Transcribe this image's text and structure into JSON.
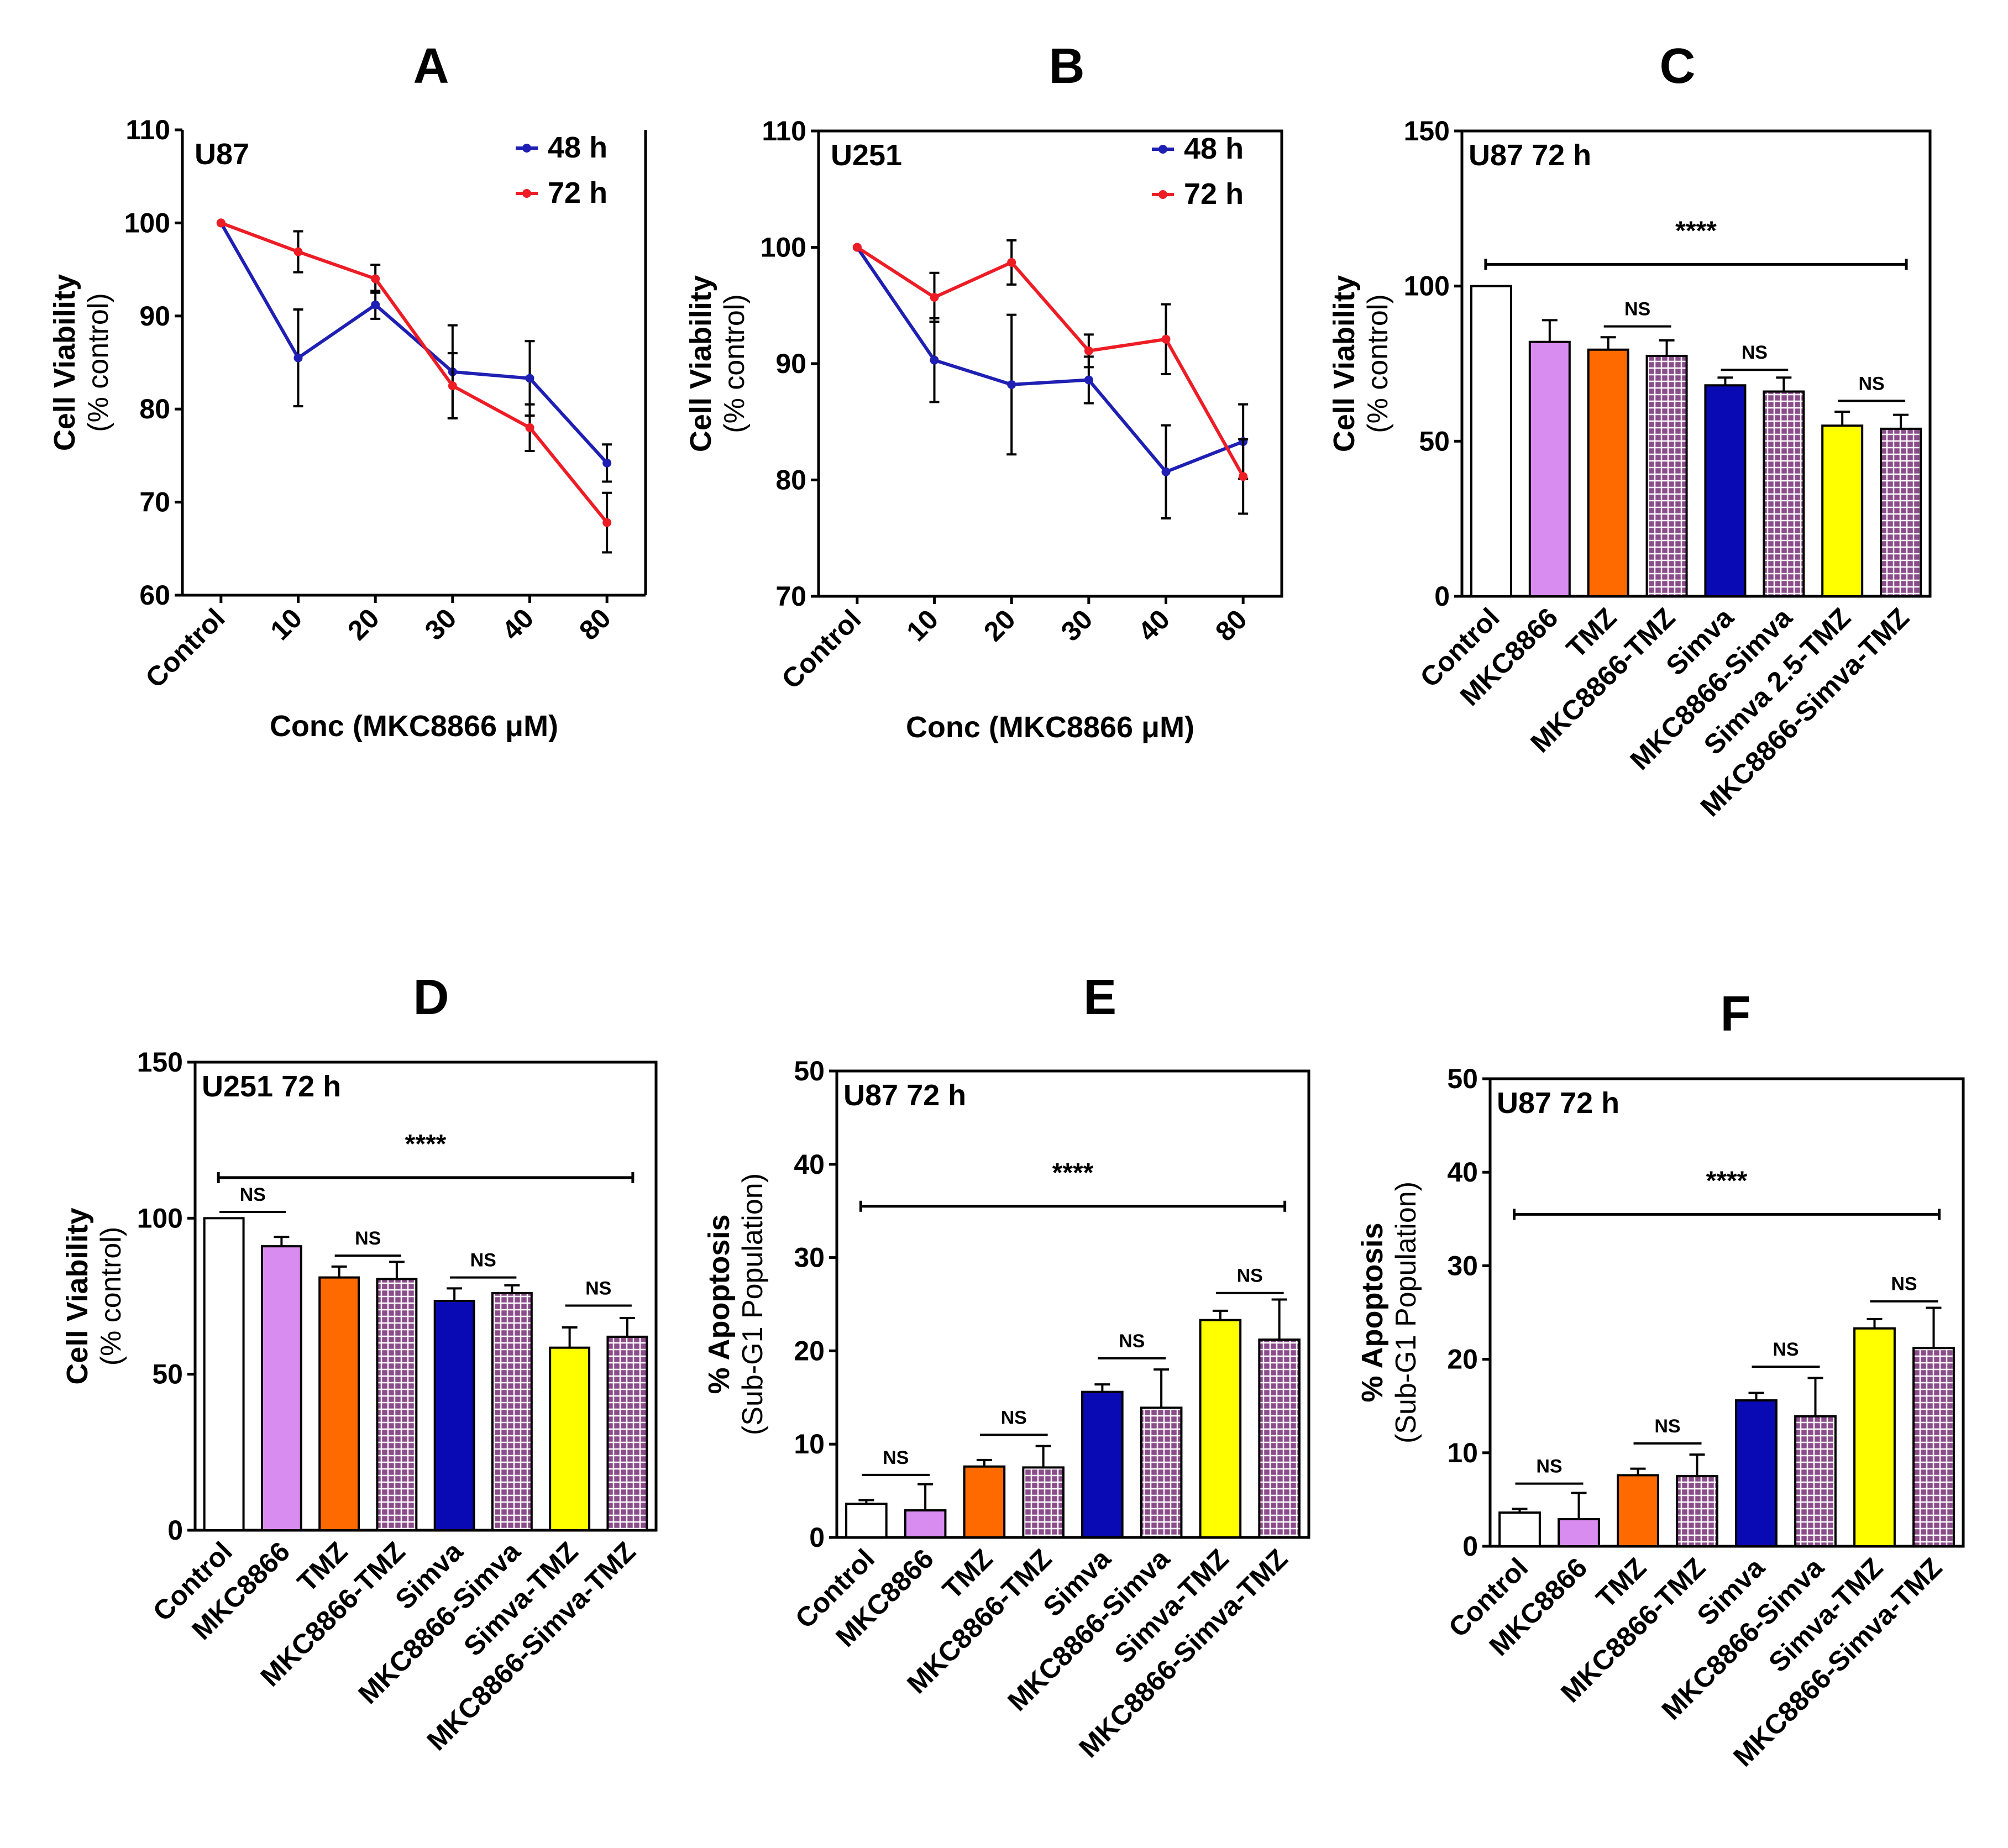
{
  "chart_data": [
    {
      "panel": "A",
      "type": "line",
      "cell_line": "U87",
      "categories": [
        "Control",
        "10",
        "20",
        "30",
        "40",
        "80"
      ],
      "xlabel": "Conc (MKC8866 μM)",
      "ylabel": "Cell Viability",
      "ylabel_sub": "(% control)",
      "ylim": [
        60,
        110
      ],
      "yticks": [
        60,
        70,
        80,
        90,
        100,
        110
      ],
      "series": [
        {
          "name": "48 h",
          "color": "#1f1fb4",
          "values": [
            100,
            85.5,
            91.2,
            84,
            83.3,
            74.2
          ],
          "errors": [
            0,
            5.2,
            1.5,
            5,
            4,
            2
          ]
        },
        {
          "name": "72 h",
          "color": "#ee1c25",
          "values": [
            100,
            96.9,
            94,
            82.5,
            78,
            67.8
          ],
          "errors": [
            0,
            2.2,
            1.5,
            3.5,
            2.5,
            3.2
          ]
        }
      ]
    },
    {
      "panel": "B",
      "type": "line",
      "cell_line": "U251",
      "categories": [
        "Control",
        "10",
        "20",
        "30",
        "40",
        "80"
      ],
      "xlabel": "Conc (MKC8866 μM)",
      "ylabel": "Cell Viability",
      "ylabel_sub": "(% control)",
      "ylim": [
        70,
        110
      ],
      "yticks": [
        70,
        80,
        90,
        100,
        110
      ],
      "series": [
        {
          "name": "48 h",
          "color": "#1f1fb4",
          "values": [
            100,
            90.3,
            88.2,
            88.6,
            80.7,
            83.3
          ],
          "errors": [
            0,
            3.6,
            6,
            2,
            4,
            3.2
          ]
        },
        {
          "name": "72 h",
          "color": "#ee1c25",
          "values": [
            100,
            95.7,
            98.7,
            91.1,
            92.1,
            80.3
          ],
          "errors": [
            0,
            2.1,
            1.9,
            1.4,
            3,
            3.2
          ]
        }
      ]
    },
    {
      "panel": "C",
      "type": "bar",
      "cell_line": "U87 72 h",
      "categories": [
        "Control",
        "MKC8866",
        "TMZ",
        "MKC8866-TMZ",
        "Simva",
        "MKC8866-Simva",
        "Simva 2.5-TMZ",
        "MKC8866-Simva-TMZ"
      ],
      "values": [
        100,
        82,
        79.5,
        77.5,
        68,
        66,
        55,
        54
      ],
      "errors": [
        0,
        7,
        4,
        5,
        2.5,
        4.5,
        4.5,
        4.5
      ],
      "ylabel": "Cell Viability",
      "ylabel_sub": "(% control)",
      "ylim": [
        0,
        150
      ],
      "yticks": [
        0,
        50,
        100,
        150
      ],
      "significance": {
        "label": "****",
        "from": 0,
        "to": 7,
        "y": 107
      },
      "ns_brackets": [
        {
          "label": "NS",
          "from": 2,
          "to": 3,
          "y": 87
        },
        {
          "label": "NS",
          "from": 4,
          "to": 5,
          "y": 73
        },
        {
          "label": "NS",
          "from": 6,
          "to": 7,
          "y": 63
        }
      ]
    },
    {
      "panel": "D",
      "type": "bar",
      "cell_line": "U251 72 h",
      "categories": [
        "Control",
        "MKC8866",
        "TMZ",
        "MKC8866-TMZ",
        "Simva",
        "MKC8866-Simva",
        "Simva-TMZ",
        "MKC8866-Simva-TMZ"
      ],
      "values": [
        100,
        91,
        81,
        80.5,
        73.5,
        76,
        58.5,
        62
      ],
      "errors": [
        0,
        3,
        3.5,
        5.5,
        4,
        2.5,
        6.5,
        6
      ],
      "ylabel": "Cell Viability",
      "ylabel_sub": "(% control)",
      "ylim": [
        0,
        150
      ],
      "yticks": [
        0,
        50,
        100,
        150
      ],
      "significance": {
        "label": "****",
        "from": 0,
        "to": 7,
        "y": 113
      },
      "ns_brackets": [
        {
          "label": "NS",
          "from": 0,
          "to": 1,
          "y": 102
        },
        {
          "label": "NS",
          "from": 2,
          "to": 3,
          "y": 88
        },
        {
          "label": "NS",
          "from": 4,
          "to": 5,
          "y": 81
        },
        {
          "label": "NS",
          "from": 6,
          "to": 7,
          "y": 72
        }
      ]
    },
    {
      "panel": "E",
      "type": "bar",
      "cell_line": "U87 72 h",
      "categories": [
        "Control",
        "MKC8866",
        "TMZ",
        "MKC8866-TMZ",
        "Simva",
        "MKC8866-Simva",
        "Simva-TMZ",
        "MKC8866-Simva-TMZ"
      ],
      "values": [
        3.6,
        2.9,
        7.6,
        7.5,
        15.6,
        13.9,
        23.3,
        21.2
      ],
      "errors": [
        0.4,
        2.8,
        0.7,
        2.3,
        0.8,
        4.1,
        1,
        4.3
      ],
      "ylabel": "% Apoptosis",
      "ylabel_sub": "(Sub-G1 Population)",
      "ylim": [
        0,
        50
      ],
      "yticks": [
        0,
        10,
        20,
        30,
        40,
        50
      ],
      "significance": {
        "label": "****",
        "from": 0,
        "to": 7,
        "y": 35.5
      },
      "ns_brackets": [
        {
          "label": "NS",
          "from": 0,
          "to": 1,
          "y": 6.7
        },
        {
          "label": "NS",
          "from": 2,
          "to": 3,
          "y": 11
        },
        {
          "label": "NS",
          "from": 4,
          "to": 5,
          "y": 19.2
        },
        {
          "label": "NS",
          "from": 6,
          "to": 7,
          "y": 26.2
        }
      ]
    },
    {
      "panel": "F",
      "type": "bar",
      "cell_line": "U87 72 h",
      "categories": [
        "Control",
        "MKC8866",
        "TMZ",
        "MKC8866-TMZ",
        "Simva",
        "MKC8866-Simva",
        "Simva-TMZ",
        "MKC8866-Simva-TMZ"
      ],
      "values": [
        3.6,
        2.9,
        7.6,
        7.5,
        15.6,
        13.9,
        23.3,
        21.2
      ],
      "errors": [
        0.4,
        2.8,
        0.7,
        2.3,
        0.8,
        4.1,
        1,
        4.3
      ],
      "ylabel": "% Apoptosis",
      "ylabel_sub": "(Sub-G1 Population)",
      "ylim": [
        0,
        50
      ],
      "yticks": [
        0,
        10,
        20,
        30,
        40,
        50
      ],
      "significance": {
        "label": "****",
        "from": 0,
        "to": 7,
        "y": 35.5
      },
      "ns_brackets": [
        {
          "label": "NS",
          "from": 0,
          "to": 1,
          "y": 6.7
        },
        {
          "label": "NS",
          "from": 2,
          "to": 3,
          "y": 11
        },
        {
          "label": "NS",
          "from": 4,
          "to": 5,
          "y": 19.2
        },
        {
          "label": "NS",
          "from": 6,
          "to": 7,
          "y": 26.2
        }
      ]
    }
  ],
  "colors": {
    "blue_48h": "#1f1fb4",
    "red_72h": "#ee1c25",
    "control_fill": "#ffffff",
    "mkc8866_fill": "#d98cf0",
    "tmz_fill": "#ff6a00",
    "simva_fill": "#0a0ab4",
    "combo_fill": "#ffff00",
    "pattern_base": "#8a4d8a",
    "pattern_line": "#ffffff"
  }
}
